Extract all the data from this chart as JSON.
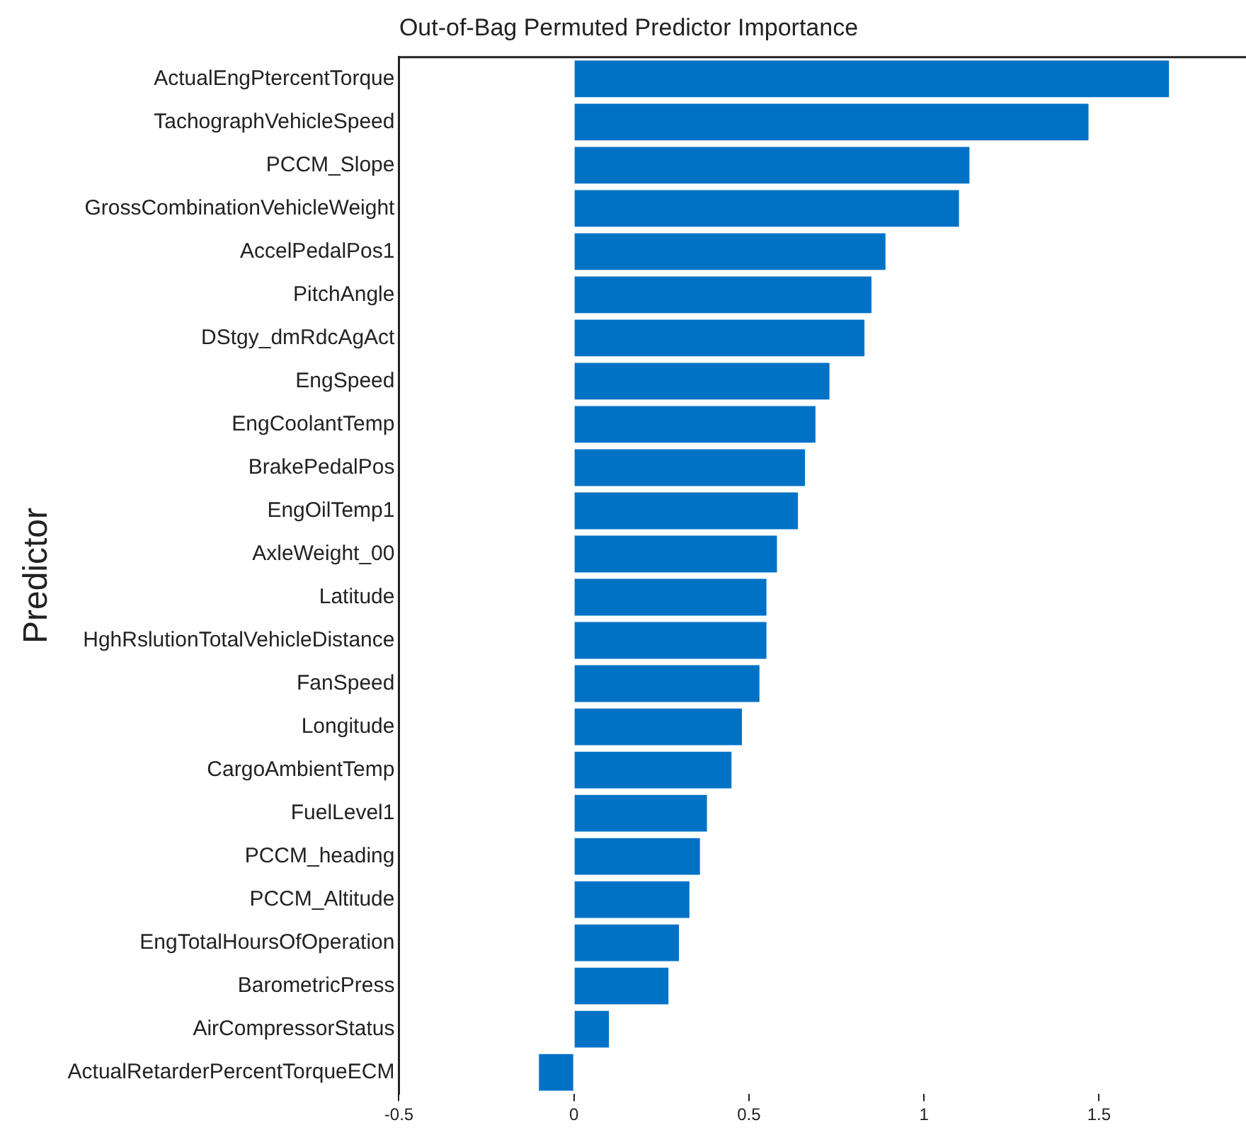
{
  "chart_data": {
    "type": "bar",
    "orientation": "horizontal",
    "title": "Out-of-Bag Permuted Predictor Importance",
    "ylabel": "Predictor",
    "categories": [
      "ActualEngPtercentTorque",
      "TachographVehicleSpeed",
      "PCCM_Slope",
      "GrossCombinationVehicleWeight",
      "AccelPedalPos1",
      "PitchAngle",
      "DStgy_dmRdcAgAct",
      "EngSpeed",
      "EngCoolantTemp",
      "BrakePedalPos",
      "EngOilTemp1",
      "AxleWeight_00",
      "Latitude",
      "HghRslutionTotalVehicleDistance",
      "FanSpeed",
      "Longitude",
      "CargoAmbientTemp",
      "FuelLevel1",
      "PCCM_heading",
      "PCCM_Altitude",
      "EngTotalHoursOfOperation",
      "BarometricPress",
      "AirCompressorStatus",
      "ActualRetarderPercentTorqueECM"
    ],
    "values": [
      1.7,
      1.47,
      1.13,
      1.1,
      0.89,
      0.85,
      0.83,
      0.73,
      0.69,
      0.66,
      0.64,
      0.58,
      0.55,
      0.55,
      0.53,
      0.48,
      0.45,
      0.38,
      0.36,
      0.33,
      0.3,
      0.27,
      0.1,
      -0.1
    ],
    "color": "#0072c6",
    "xlim": [
      -0.5,
      1.92
    ],
    "xticks": [
      -0.5,
      0,
      0.5,
      1,
      1.5
    ],
    "grid": false,
    "legend": false
  }
}
